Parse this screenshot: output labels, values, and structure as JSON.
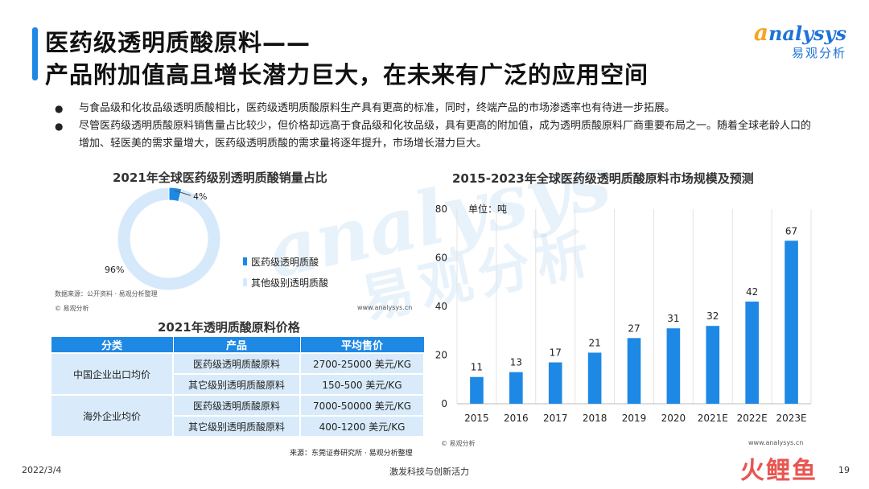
{
  "header": {
    "title_line1": "医药级透明质酸原料——",
    "title_line2": "产品附加值高且增长潜力巨大，在未来有广泛的应用空间"
  },
  "logo": {
    "en_initial": "a",
    "en_rest": "nalysys",
    "cn": "易观分析"
  },
  "bullets": [
    "与食品级和化妆品级透明质酸相比，医药级透明质酸原料生产具有更高的标准，同时，终端产品的市场渗透率也有待进一步拓展。",
    "尽管医药级透明质酸原料销售量占比较少，但价格却远高于食品级和化妆品级，具有更高的附加值，成为透明质酸原料厂商重要布局之一。随着全球老龄人口的增加、轻医美的需求量增大，医药级透明质酸的需求量将逐年提升，市场增长潜力巨大。"
  ],
  "watermark": {
    "en": "analysys",
    "cn": "易观分析"
  },
  "chart_data": [
    {
      "type": "pie",
      "title": "2021年全球医药级别透明质酸销量占比",
      "labels": [
        "医药级透明质酸",
        "其他级别透明质酸"
      ],
      "values": [
        4,
        96
      ],
      "value_labels": [
        "4%",
        "96%"
      ],
      "colors": [
        "#1e88e5",
        "#d6e9fb"
      ],
      "legend": "right",
      "source": "数据来源：公开资料 · 易观分析整理",
      "copyright": "© 易观分析",
      "site": "www.analysys.cn"
    },
    {
      "type": "bar",
      "title": "2015-2023年全球医药级透明质酸原料市场规模及预测",
      "unit_label": "单位：吨",
      "categories": [
        "2015",
        "2016",
        "2017",
        "2018",
        "2019",
        "2020",
        "2021E",
        "2022E",
        "2023E"
      ],
      "values": [
        11,
        13,
        17,
        21,
        27,
        31,
        32,
        42,
        67
      ],
      "ylim": [
        0,
        80
      ],
      "yticks": [
        0,
        20,
        40,
        60,
        80
      ],
      "grid": true,
      "color": "#1e88e5",
      "copyright": "© 易观分析",
      "site": "www.analysys.cn"
    }
  ],
  "price_table": {
    "title": "2021年透明质酸原料价格",
    "headers": [
      "分类",
      "产品",
      "平均售价"
    ],
    "groups": [
      {
        "category": "中国企业出口均价",
        "rows": [
          {
            "product": "医药级透明质酸原料",
            "price": "2700-25000 美元/KG"
          },
          {
            "product": "其它级别透明质酸原料",
            "price": "150-500 美元/KG"
          }
        ]
      },
      {
        "category": "海外企业均价",
        "rows": [
          {
            "product": "医药级透明质酸原料",
            "price": "7000-50000 美元/KG"
          },
          {
            "product": "其它级别透明质酸原料",
            "price": "400-1200 美元/KG"
          }
        ]
      }
    ],
    "source": "来源：东莞证券研究所 · 易观分析整理"
  },
  "footer": {
    "date": "2022/3/4",
    "slogan": "激发科技与创新活力",
    "page": "19",
    "brand": "火鲤鱼"
  }
}
